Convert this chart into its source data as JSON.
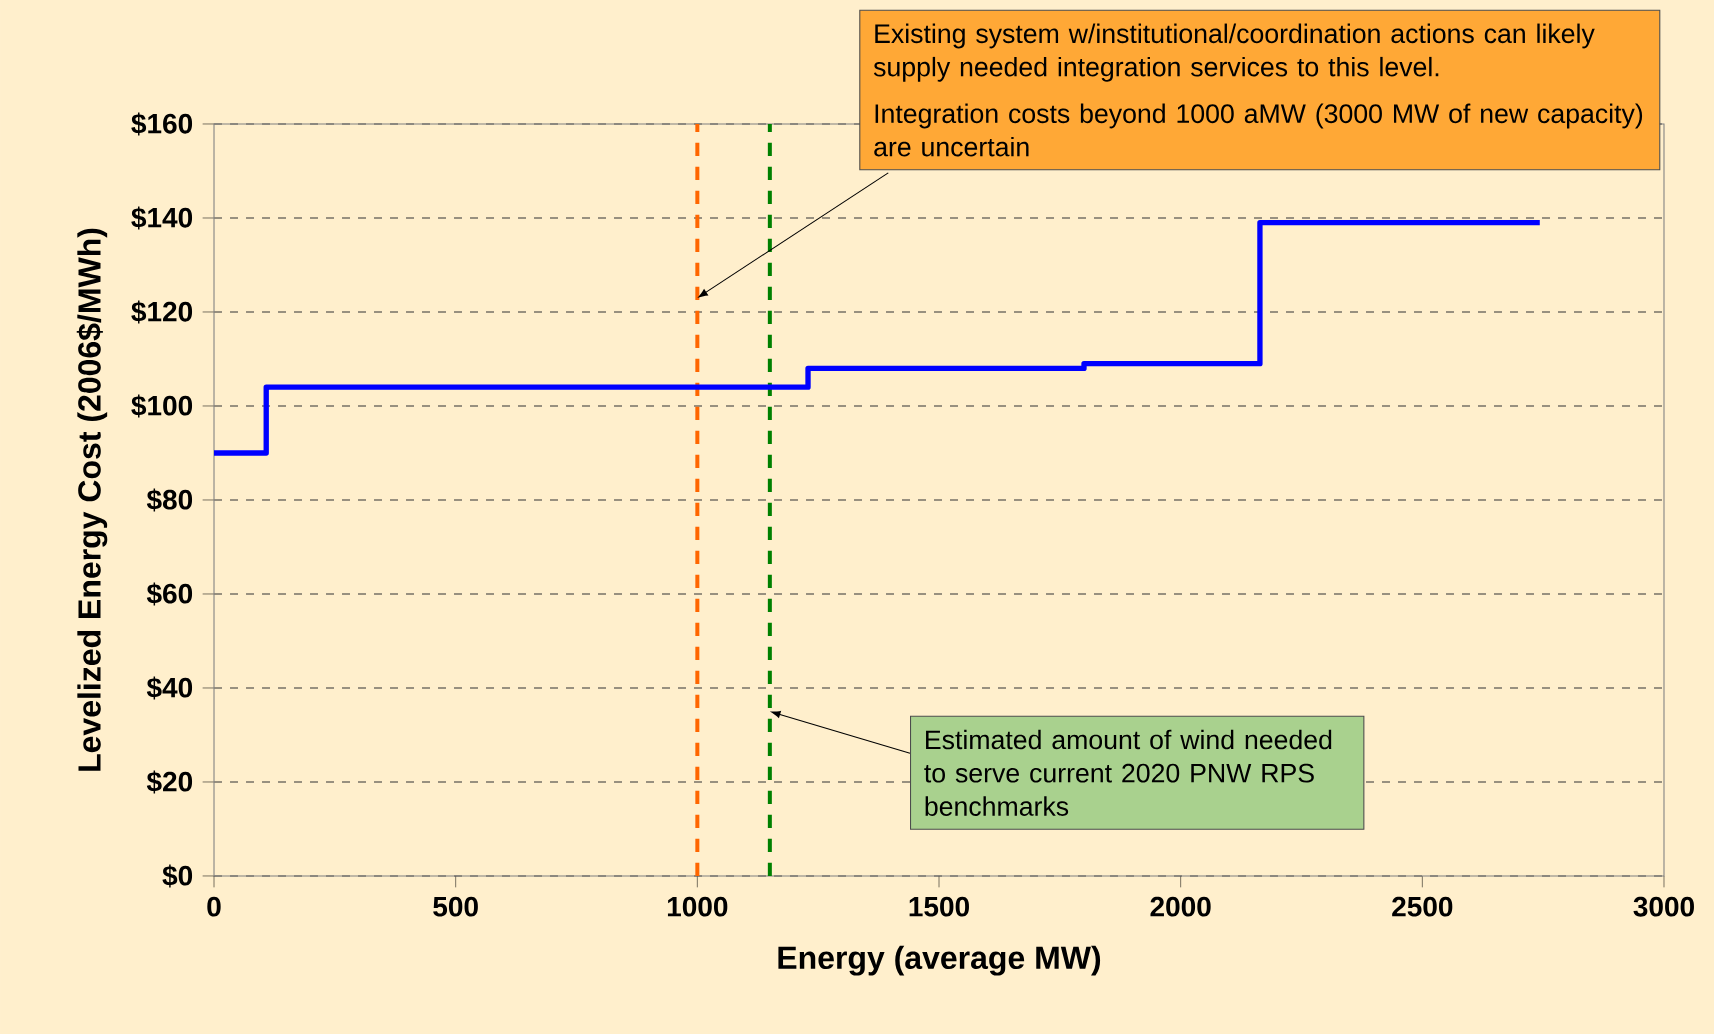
{
  "chart_data": {
    "type": "step",
    "xlabel": "Energy (average MW)",
    "ylabel": "Levelized Energy Cost (2006$/MWh)",
    "x": [
      0,
      108,
      1229,
      1800,
      2164,
      2743
    ],
    "series": [
      {
        "color": "#0000ff",
        "values": [
          90,
          104,
          108,
          109,
          139,
          139
        ]
      }
    ],
    "xlim": [
      0,
      3000
    ],
    "xticks": [
      0,
      500,
      1000,
      1500,
      2000,
      2500,
      3000
    ],
    "ylim": [
      0,
      160
    ],
    "yticks": [
      {
        "value": 0,
        "label": "$0"
      },
      {
        "value": 20,
        "label": "$20"
      },
      {
        "value": 40,
        "label": "$40"
      },
      {
        "value": 60,
        "label": "$60"
      },
      {
        "value": 80,
        "label": "$80"
      },
      {
        "value": 100,
        "label": "$100"
      },
      {
        "value": 120,
        "label": "$120"
      },
      {
        "value": 140,
        "label": "$140"
      },
      {
        "value": 160,
        "label": "$160"
      }
    ],
    "grid": "y",
    "ref_lines": [
      {
        "axis": "x",
        "value": 1000,
        "color": "#ff6600",
        "line_style": "dashed"
      },
      {
        "axis": "x",
        "value": 1150,
        "color": "#008000",
        "line_style": "dashed"
      }
    ],
    "annotations": [
      "Existing system w/institutional/coordination actions can likely supply needed integration services to this level.",
      {
        "text": "Integration costs beyond 1000 aMW (3000 MW of new capacity) are uncertain",
        "x": 1000,
        "y": 123
      },
      {
        "text": "Estimated amount of wind needed to serve current 2020 PNW RPS benchmarks",
        "x": 1150,
        "y": 35
      }
    ]
  }
}
